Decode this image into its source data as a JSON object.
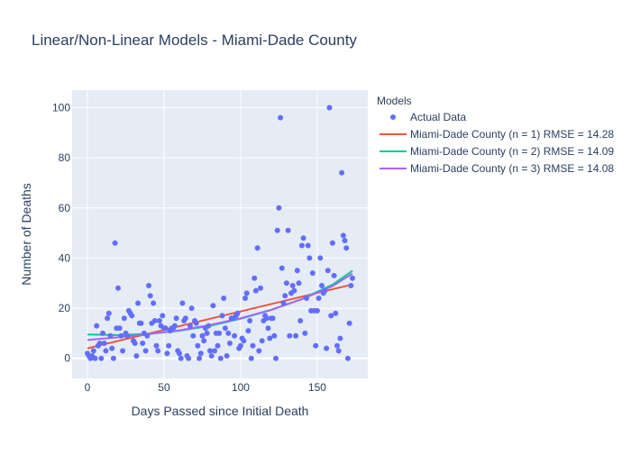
{
  "chart_data": {
    "type": "scatter",
    "title": "Linear/Non-Linear Models - Miami-Dade County",
    "xlabel": "Days Passed since Initial Death",
    "ylabel": "Number of Deaths",
    "xlim": [
      -10,
      183
    ],
    "ylim": [
      -8,
      107
    ],
    "xticks": [
      0,
      50,
      100,
      150
    ],
    "yticks": [
      0,
      20,
      40,
      60,
      80,
      100
    ],
    "grid": true,
    "legend": {
      "title": "Models",
      "placement": "right"
    },
    "series": [
      {
        "name": "Actual Data",
        "kind": "markers",
        "color": "#636efa",
        "points": [
          [
            0,
            2
          ],
          [
            1,
            1
          ],
          [
            2,
            0
          ],
          [
            3,
            1
          ],
          [
            4,
            3
          ],
          [
            5,
            0
          ],
          [
            6,
            13
          ],
          [
            7,
            5
          ],
          [
            8,
            6
          ],
          [
            9,
            0
          ],
          [
            10,
            10
          ],
          [
            11,
            6
          ],
          [
            12,
            3
          ],
          [
            13,
            16
          ],
          [
            14,
            18
          ],
          [
            15,
            9
          ],
          [
            16,
            4
          ],
          [
            17,
            0
          ],
          [
            18,
            46
          ],
          [
            19,
            12
          ],
          [
            20,
            28
          ],
          [
            21,
            12
          ],
          [
            22,
            9
          ],
          [
            23,
            3
          ],
          [
            24,
            16
          ],
          [
            25,
            10
          ],
          [
            26,
            9
          ],
          [
            27,
            19
          ],
          [
            28,
            18
          ],
          [
            29,
            17
          ],
          [
            30,
            7
          ],
          [
            31,
            6
          ],
          [
            32,
            1
          ],
          [
            33,
            22
          ],
          [
            34,
            14
          ],
          [
            35,
            14
          ],
          [
            36,
            6
          ],
          [
            37,
            10
          ],
          [
            38,
            3
          ],
          [
            39,
            9
          ],
          [
            40,
            29
          ],
          [
            41,
            25
          ],
          [
            42,
            14
          ],
          [
            43,
            22
          ],
          [
            44,
            15
          ],
          [
            45,
            5
          ],
          [
            46,
            3
          ],
          [
            47,
            15
          ],
          [
            48,
            13
          ],
          [
            49,
            17
          ],
          [
            50,
            12
          ],
          [
            51,
            12
          ],
          [
            52,
            2
          ],
          [
            53,
            5
          ],
          [
            54,
            11
          ],
          [
            55,
            12
          ],
          [
            56,
            12
          ],
          [
            57,
            13
          ],
          [
            58,
            16
          ],
          [
            59,
            3
          ],
          [
            60,
            2
          ],
          [
            61,
            0
          ],
          [
            62,
            22
          ],
          [
            63,
            15
          ],
          [
            64,
            16
          ],
          [
            65,
            1
          ],
          [
            66,
            0
          ],
          [
            67,
            13
          ],
          [
            68,
            20
          ],
          [
            69,
            9
          ],
          [
            70,
            15
          ],
          [
            71,
            14
          ],
          [
            72,
            5
          ],
          [
            73,
            0
          ],
          [
            74,
            2
          ],
          [
            75,
            9
          ],
          [
            76,
            7
          ],
          [
            77,
            12
          ],
          [
            78,
            10
          ],
          [
            79,
            13
          ],
          [
            80,
            3
          ],
          [
            81,
            1
          ],
          [
            82,
            21
          ],
          [
            83,
            3
          ],
          [
            84,
            10
          ],
          [
            85,
            5
          ],
          [
            86,
            10
          ],
          [
            87,
            0
          ],
          [
            88,
            17
          ],
          [
            89,
            24
          ],
          [
            90,
            12
          ],
          [
            91,
            1
          ],
          [
            92,
            10
          ],
          [
            93,
            6
          ],
          [
            94,
            16
          ],
          [
            95,
            16
          ],
          [
            96,
            9
          ],
          [
            97,
            17
          ],
          [
            98,
            18
          ],
          [
            99,
            4
          ],
          [
            100,
            5
          ],
          [
            101,
            8
          ],
          [
            102,
            7
          ],
          [
            103,
            24
          ],
          [
            104,
            26
          ],
          [
            105,
            11
          ],
          [
            106,
            15
          ],
          [
            107,
            0
          ],
          [
            108,
            5
          ],
          [
            109,
            32
          ],
          [
            110,
            27
          ],
          [
            111,
            44
          ],
          [
            112,
            3
          ],
          [
            113,
            28
          ],
          [
            114,
            7
          ],
          [
            115,
            15
          ],
          [
            116,
            17
          ],
          [
            117,
            16
          ],
          [
            118,
            12
          ],
          [
            119,
            8
          ],
          [
            120,
            16
          ],
          [
            121,
            16
          ],
          [
            122,
            9
          ],
          [
            123,
            0
          ],
          [
            124,
            51
          ],
          [
            125,
            60
          ],
          [
            126,
            96
          ],
          [
            127,
            36
          ],
          [
            128,
            22
          ],
          [
            129,
            25
          ],
          [
            130,
            30
          ],
          [
            131,
            51
          ],
          [
            132,
            9
          ],
          [
            133,
            26
          ],
          [
            134,
            29
          ],
          [
            135,
            27
          ],
          [
            136,
            9
          ],
          [
            137,
            35
          ],
          [
            138,
            30
          ],
          [
            139,
            15
          ],
          [
            140,
            45
          ],
          [
            141,
            48
          ],
          [
            142,
            10
          ],
          [
            143,
            24
          ],
          [
            144,
            45
          ],
          [
            145,
            40
          ],
          [
            146,
            19
          ],
          [
            147,
            34
          ],
          [
            148,
            19
          ],
          [
            149,
            5
          ],
          [
            150,
            19
          ],
          [
            151,
            24
          ],
          [
            152,
            40
          ],
          [
            153,
            29
          ],
          [
            154,
            26
          ],
          [
            155,
            27
          ],
          [
            156,
            4
          ],
          [
            157,
            35
          ],
          [
            158,
            100
          ],
          [
            159,
            17
          ],
          [
            160,
            46
          ],
          [
            161,
            33
          ],
          [
            162,
            18
          ],
          [
            163,
            5
          ],
          [
            164,
            3
          ],
          [
            165,
            8
          ],
          [
            166,
            74
          ],
          [
            167,
            49
          ],
          [
            168,
            47
          ],
          [
            169,
            44
          ],
          [
            170,
            0
          ],
          [
            171,
            14
          ],
          [
            172,
            29
          ],
          [
            173,
            32
          ]
        ]
      },
      {
        "name": "Miami-Dade County (n = 1) RMSE = 14.28",
        "kind": "line",
        "color": "#ef553b",
        "x": [
          0,
          173
        ],
        "y": [
          4.0,
          29.5
        ]
      },
      {
        "name": "Miami-Dade County (n = 2) RMSE = 14.09",
        "kind": "line",
        "color": "#00cc96",
        "x": [
          0,
          20,
          40,
          60,
          80,
          100,
          120,
          140,
          160,
          173
        ],
        "y": [
          9.5,
          9.3,
          9.8,
          11.0,
          13.0,
          15.8,
          19.3,
          23.7,
          29.4,
          34.9
        ]
      },
      {
        "name": "Miami-Dade County (n = 3) RMSE = 14.08",
        "kind": "line",
        "color": "#ab63fa",
        "x": [
          0,
          20,
          40,
          60,
          80,
          100,
          120,
          140,
          160,
          173
        ],
        "y": [
          7.3,
          8.4,
          9.7,
          11.2,
          13.3,
          16.0,
          19.4,
          23.6,
          28.8,
          33.8
        ]
      }
    ]
  }
}
